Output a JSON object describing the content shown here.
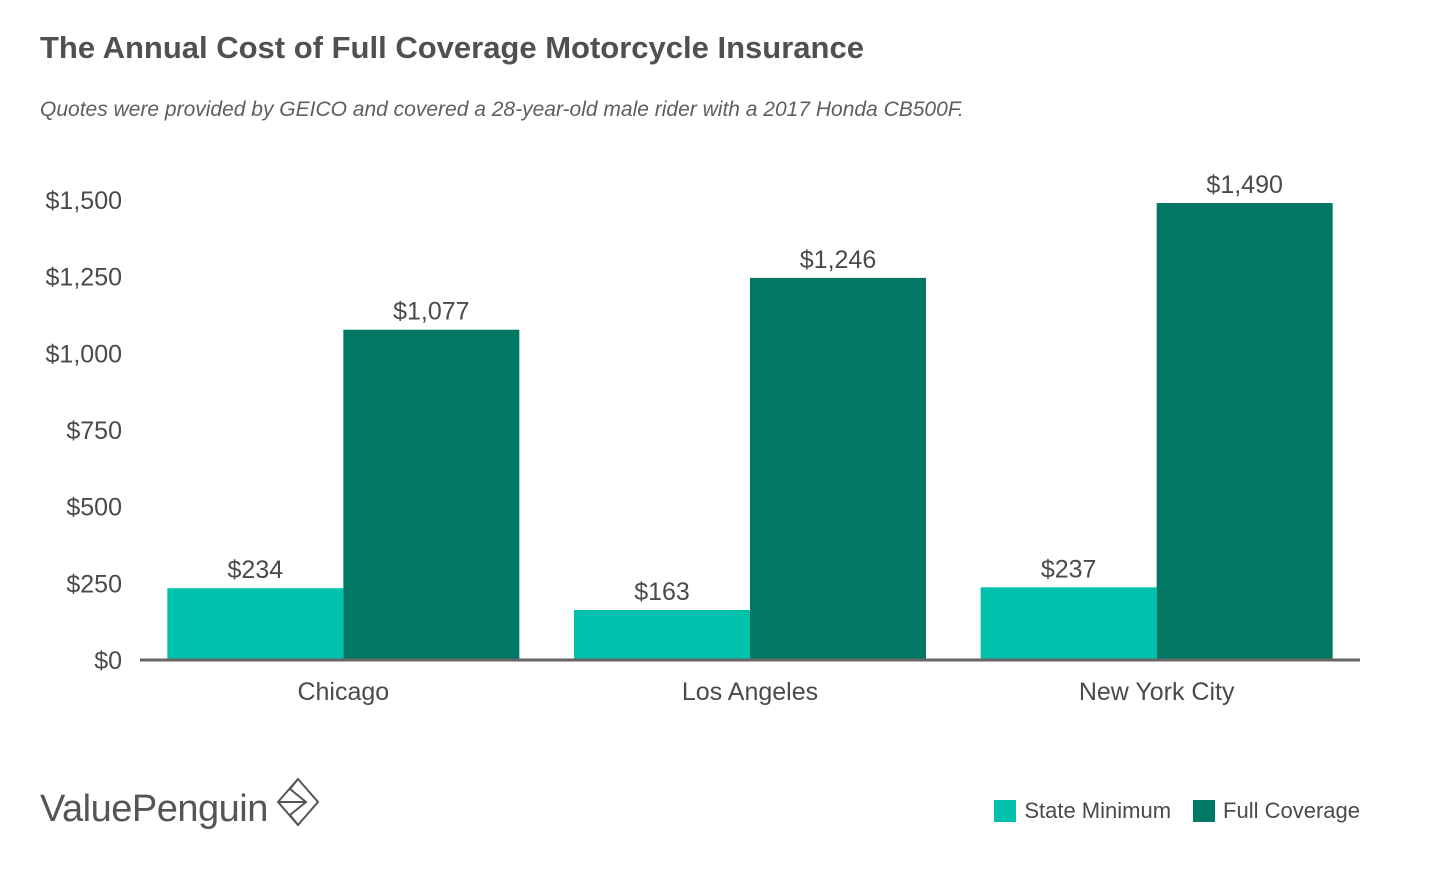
{
  "header": {
    "title": "The Annual Cost of Full Coverage Motorcycle Insurance",
    "subtitle": "Quotes were provided by GEICO and covered a 28-year-old male rider with a 2017 Honda CB500F."
  },
  "branding": {
    "logo_text": "ValuePenguin",
    "logo_icon": "diamond-logo-icon"
  },
  "colors": {
    "state_minimum": "#00c1ab",
    "full_coverage": "#007864",
    "axis": "#666666",
    "text": "#4a4a4a"
  },
  "chart_data": {
    "type": "bar",
    "categories": [
      "Chicago",
      "Los Angeles",
      "New York City"
    ],
    "series": [
      {
        "name": "State Minimum",
        "values": [
          234,
          163,
          237
        ],
        "labels": [
          "$234",
          "$163",
          "$237"
        ]
      },
      {
        "name": "Full Coverage",
        "values": [
          1077,
          1246,
          1490
        ],
        "labels": [
          "$1,077",
          "$1,246",
          "$1,490"
        ]
      }
    ],
    "ylim": [
      0,
      1500
    ],
    "yticks": [
      0,
      250,
      500,
      750,
      1000,
      1250,
      1500
    ],
    "ytick_labels": [
      "$0",
      "$250",
      "$500",
      "$750",
      "$1,000",
      "$1,250",
      "$1,500"
    ],
    "xlabel": "",
    "ylabel": "",
    "grid": false,
    "legend_position": "bottom-right"
  }
}
